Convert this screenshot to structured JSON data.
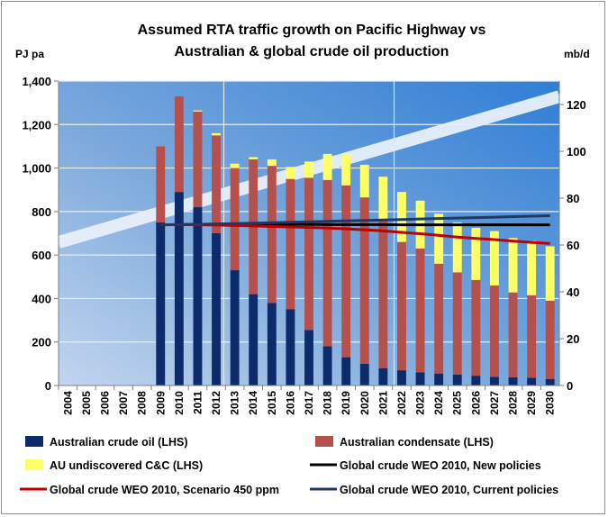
{
  "chart_data": {
    "type": "bar",
    "title_lines": [
      "Assumed  RTA traffic growth on Pacific Highway vs",
      "Australian & global crude oil production"
    ],
    "y_left_unit": "PJ pa",
    "y_right_unit": "mb/d",
    "y_left_range": [
      0,
      1400
    ],
    "y_left_ticks": [
      "0",
      "200",
      "400",
      "600",
      "800",
      "1,000",
      "1,200",
      "1,400"
    ],
    "y_right_range": [
      0,
      130
    ],
    "y_right_ticks": [
      "0",
      "20",
      "40",
      "60",
      "80",
      "100",
      "120"
    ],
    "categories": [
      "2004",
      "2005",
      "2006",
      "2007",
      "2008",
      "2009",
      "2010",
      "2011",
      "2012",
      "2013",
      "2014",
      "2015",
      "2016",
      "2017",
      "2018",
      "2019",
      "2020",
      "2021",
      "2022",
      "2023",
      "2024",
      "2025",
      "2026",
      "2027",
      "2028",
      "2029",
      "2030"
    ],
    "stacked_series": [
      {
        "name": "Australian crude oil (LHS)",
        "color": "#0d2a6b",
        "values": [
          0,
          0,
          0,
          0,
          0,
          750,
          890,
          820,
          700,
          530,
          420,
          380,
          350,
          255,
          180,
          130,
          100,
          80,
          70,
          60,
          55,
          50,
          45,
          40,
          38,
          35,
          30
        ]
      },
      {
        "name": "Australian condensate (LHS)",
        "color": "#b5504d",
        "values": [
          0,
          0,
          0,
          0,
          0,
          350,
          440,
          440,
          450,
          470,
          620,
          630,
          600,
          700,
          765,
          790,
          765,
          680,
          590,
          570,
          505,
          470,
          440,
          420,
          390,
          380,
          360
        ]
      },
      {
        "name": "AU undiscovered C&C (LHS)",
        "color": "#ffff66",
        "values": [
          0,
          0,
          0,
          0,
          0,
          0,
          0,
          5,
          10,
          20,
          10,
          30,
          55,
          75,
          120,
          140,
          150,
          200,
          230,
          220,
          230,
          230,
          240,
          250,
          250,
          250,
          250
        ]
      }
    ],
    "line_series": [
      {
        "name": "Global crude WEO 2010, New policies",
        "color": "#000000",
        "axis": "right",
        "values": [
          null,
          null,
          null,
          null,
          null,
          68.6,
          68.7,
          68.8,
          68.8,
          68.8,
          68.8,
          68.8,
          68.8,
          68.8,
          68.7,
          68.7,
          68.7,
          68.7,
          68.6,
          68.6,
          68.6,
          68.6,
          68.6,
          68.6,
          68.6,
          68.6,
          68.6
        ]
      },
      {
        "name": "Global crude WEO 2010, Scenario 450 ppm",
        "color": "#c00000",
        "axis": "right",
        "values": [
          null,
          null,
          null,
          null,
          null,
          68.6,
          68.7,
          68.6,
          68.5,
          68.3,
          68.1,
          67.9,
          67.7,
          67.5,
          67.2,
          66.9,
          66.5,
          66.0,
          65.4,
          64.8,
          64.1,
          63.4,
          62.8,
          62.3,
          61.7,
          61.1,
          60.6
        ]
      },
      {
        "name": "Global crude WEO 2010, Current policies",
        "color": "#1f3864",
        "axis": "right",
        "values": [
          null,
          null,
          null,
          null,
          null,
          68.6,
          68.7,
          68.8,
          69.0,
          69.1,
          69.3,
          69.5,
          69.7,
          69.9,
          70.1,
          70.3,
          70.5,
          70.7,
          70.9,
          71.1,
          71.3,
          71.5,
          71.7,
          71.9,
          72.1,
          72.3,
          72.5
        ]
      }
    ],
    "background_trend": {
      "label": "RTA traffic growth (background band)",
      "start_value_left": 700,
      "end_value_left": 1370
    },
    "legend": [
      {
        "label": "Australian crude oil (LHS)",
        "kind": "box",
        "color": "#0d2a6b"
      },
      {
        "label": "Australian condensate (LHS)",
        "kind": "box",
        "color": "#b5504d"
      },
      {
        "label": "AU undiscovered C&C (LHS)",
        "kind": "box",
        "color": "#ffff66"
      },
      {
        "label": "Global crude WEO 2010, New policies",
        "kind": "line",
        "color": "#000000"
      },
      {
        "label": "Global crude WEO 2010, Scenario 450 ppm",
        "kind": "line",
        "color": "#c00000"
      },
      {
        "label": "Global crude WEO 2010, Current policies",
        "kind": "line",
        "color": "#1f3864"
      }
    ],
    "grid": true,
    "legend_position": "bottom"
  }
}
